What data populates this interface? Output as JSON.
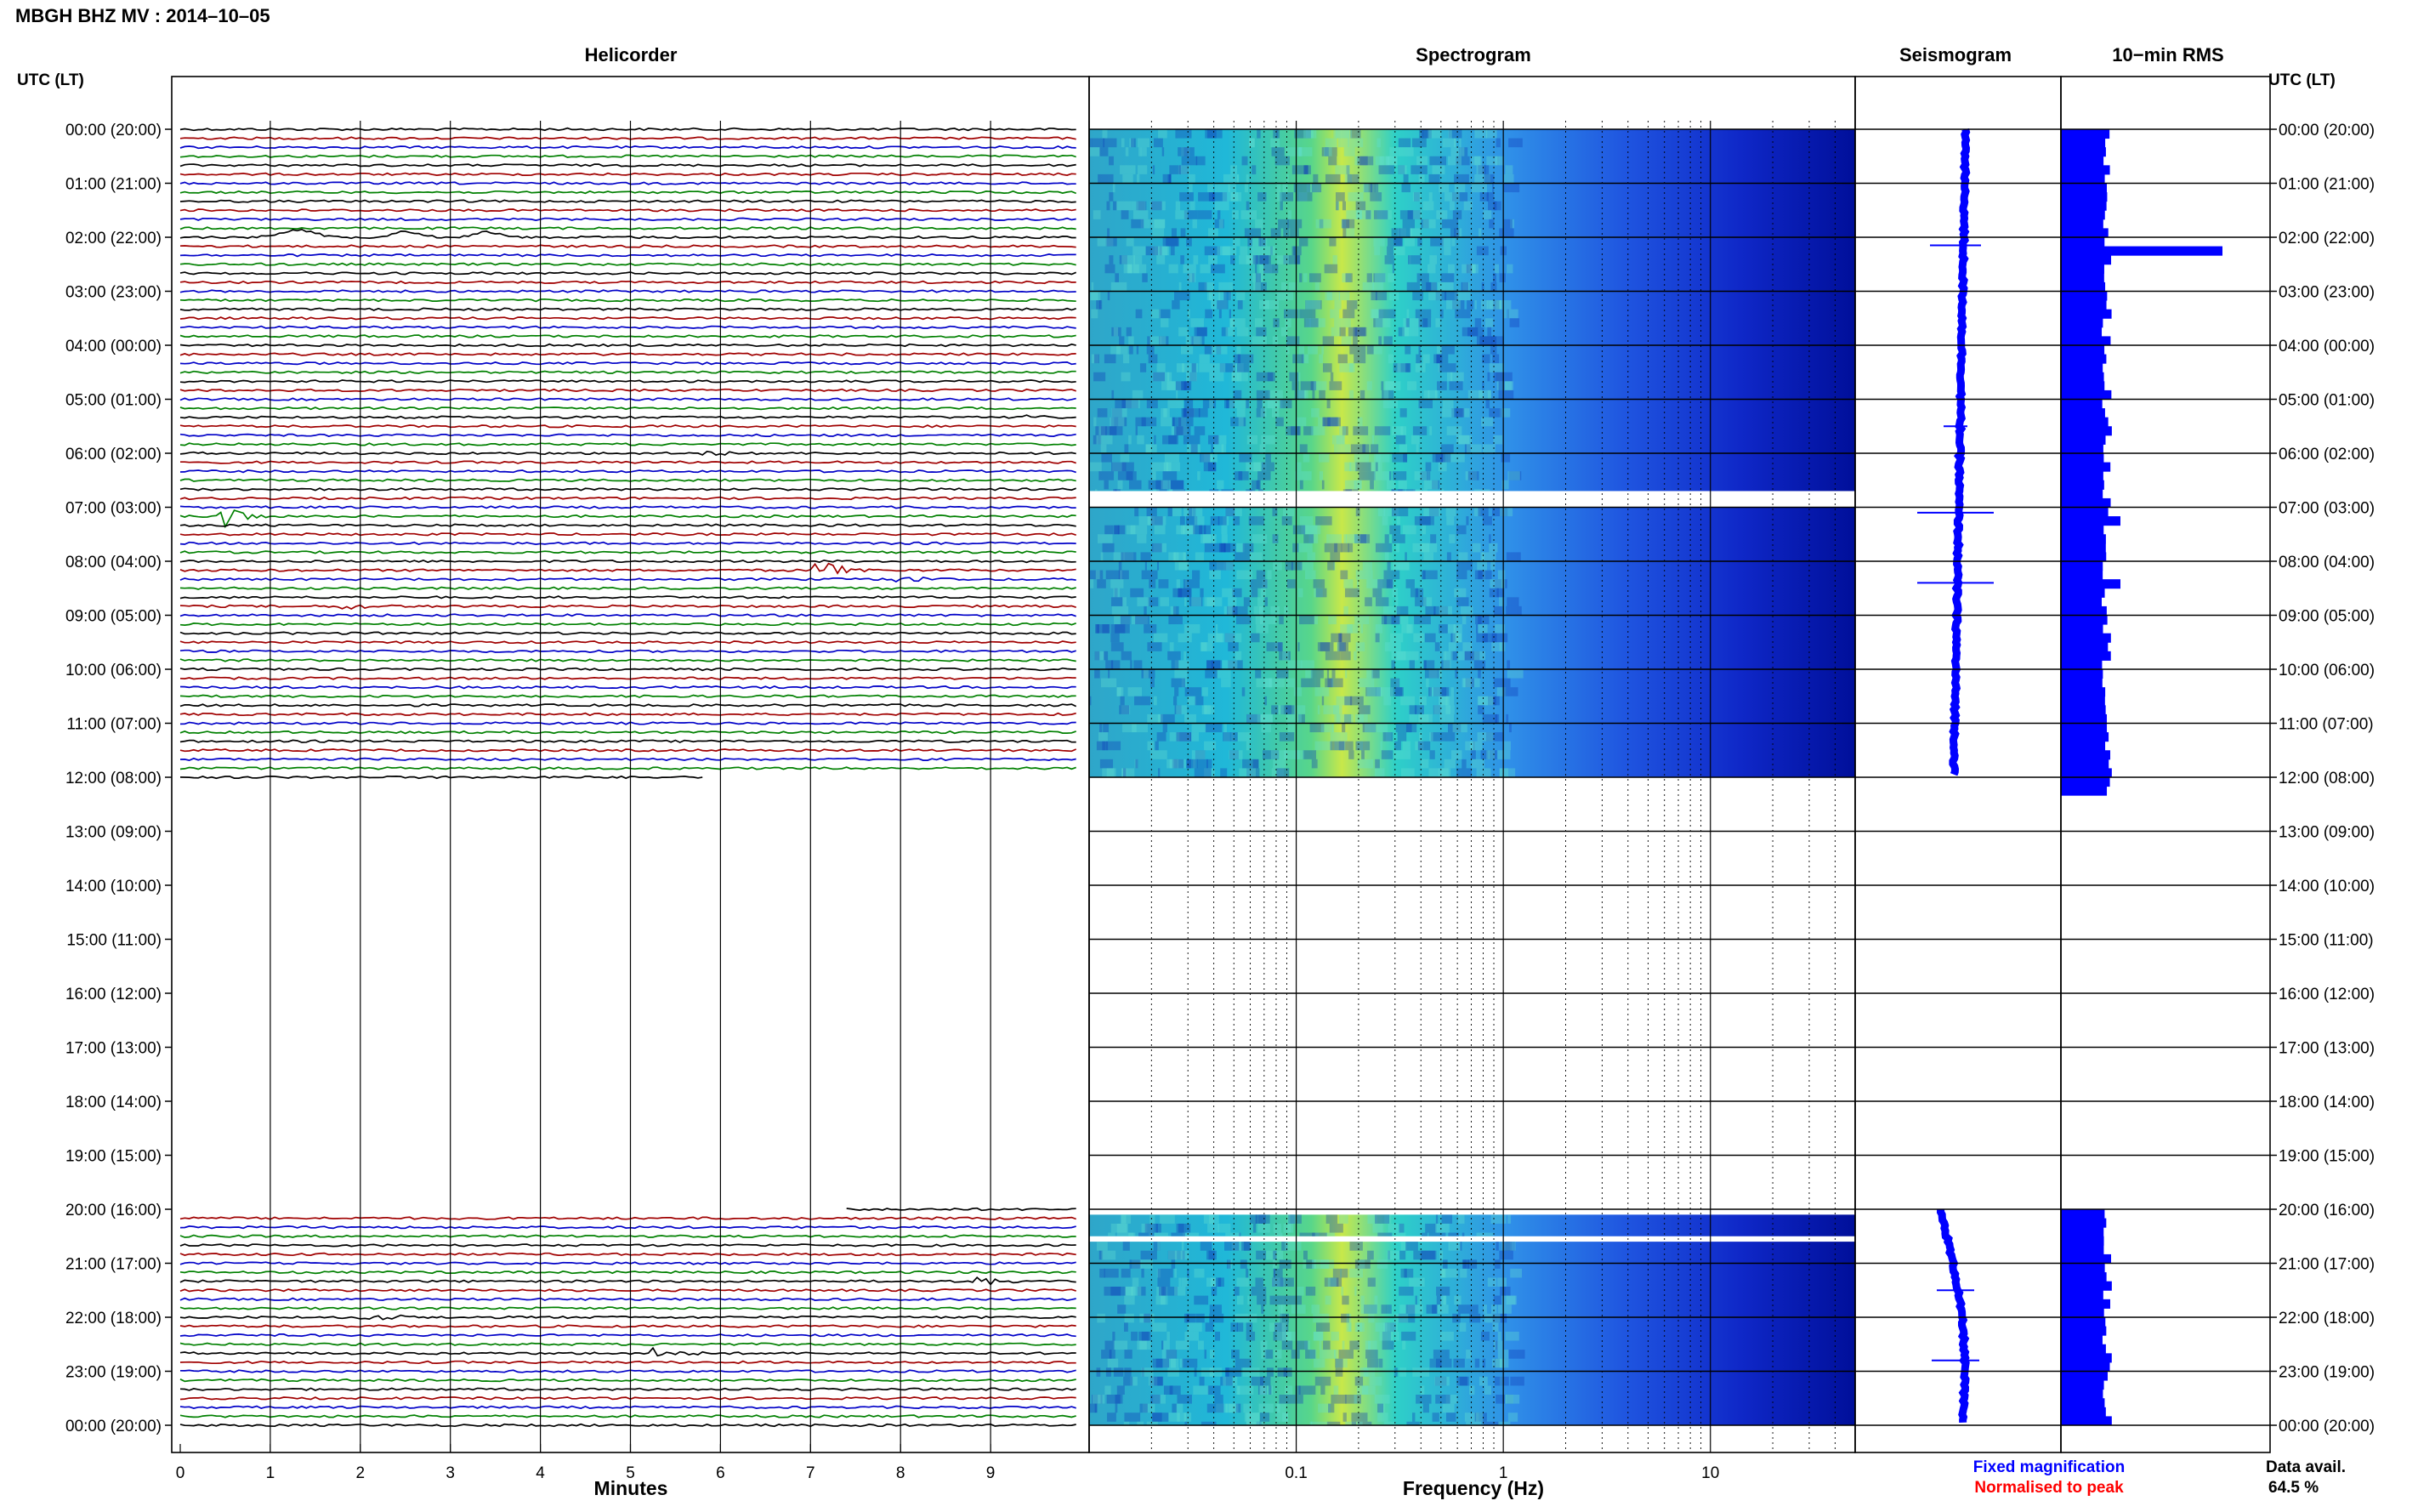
{
  "figure_title": "MBGH BHZ MV : 2014–10–05",
  "time_axis_label": "UTC (LT)",
  "colors": {
    "trace_cycle": [
      "#000000",
      "#a00000",
      "#0000c8",
      "#008000"
    ],
    "rms_bar": "#0000ff",
    "seismogram": "#0000ff",
    "fixed_note": "#0000ff",
    "normalised_note": "#ff0000"
  },
  "legend": {
    "fixed": "Fixed magnification",
    "normalised": "Normalised to peak",
    "avail_label": "Data avail.",
    "avail_value": "64.5 %"
  },
  "chart_data": [
    {
      "type": "line",
      "title": "Helicorder",
      "xlabel": "Minutes",
      "xlim": [
        0,
        10
      ],
      "x_ticks": [
        "0",
        "1",
        "2",
        "3",
        "4",
        "5",
        "6",
        "7",
        "8",
        "9"
      ],
      "traces_per_hour": 6,
      "data_segments_utc_hours": [
        [
          0,
          12
        ],
        [
          20,
          24
        ]
      ],
      "time_ticks": [
        "00:00 (20:00)",
        "01:00 (21:00)",
        "02:00 (22:00)",
        "03:00 (23:00)",
        "04:00 (00:00)",
        "05:00 (01:00)",
        "06:00 (02:00)",
        "07:00 (03:00)",
        "08:00 (04:00)",
        "09:00 (05:00)",
        "10:00 (06:00)",
        "11:00 (07:00)",
        "12:00 (08:00)",
        "13:00 (09:00)",
        "14:00 (10:00)",
        "15:00 (11:00)",
        "16:00 (12:00)",
        "17:00 (13:00)",
        "18:00 (14:00)",
        "19:00 (15:00)",
        "20:00 (16:00)",
        "21:00 (17:00)",
        "22:00 (18:00)",
        "23:00 (19:00)",
        "00:00 (20:00)"
      ],
      "events": [
        {
          "hour": 2.0,
          "minute": 2.3,
          "kind": "slow wave"
        },
        {
          "hour": 5.3,
          "minute": 9.3,
          "kind": "small"
        },
        {
          "hour": 6.0,
          "minute": 5.8,
          "kind": "small"
        },
        {
          "hour": 7.1,
          "minute": 0.5,
          "kind": "large"
        },
        {
          "hour": 8.1,
          "minute": 7.1,
          "kind": "large"
        },
        {
          "hour": 8.3,
          "minute": 8.0,
          "kind": "medium"
        },
        {
          "hour": 8.9,
          "minute": 1.9,
          "kind": "small"
        },
        {
          "hour": 21.3,
          "minute": 8.9,
          "kind": "medium"
        },
        {
          "hour": 22.0,
          "minute": 2.1,
          "kind": "medium"
        },
        {
          "hour": 22.7,
          "minute": 5.3,
          "kind": "medium"
        }
      ]
    },
    {
      "type": "heatmap",
      "title": "Spectrogram",
      "xlabel": "Frequency (Hz)",
      "x_scale": "log",
      "xlim": [
        0.01,
        50
      ],
      "x_ticks": [
        "0.1",
        "1",
        "10"
      ],
      "data_segments_utc_hours": [
        [
          0,
          6.7
        ],
        [
          7.0,
          12
        ],
        [
          20.1,
          20.5
        ],
        [
          20.6,
          24
        ]
      ]
    },
    {
      "type": "line",
      "title": "Seismogram",
      "data_segments_utc_hours": [
        [
          0,
          12
        ],
        [
          20,
          24
        ]
      ]
    },
    {
      "type": "bar",
      "title": "10−min RMS",
      "data_segments_utc_hours": [
        [
          0,
          12.2
        ],
        [
          20,
          24
        ]
      ],
      "peak_hours": [
        2.2,
        7.2,
        8.3
      ]
    }
  ]
}
